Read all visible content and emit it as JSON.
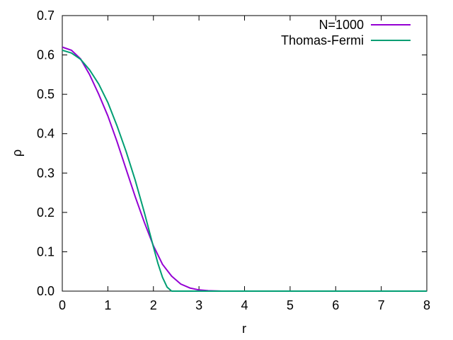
{
  "chart_data": {
    "type": "line",
    "title": "",
    "xlabel": "r",
    "ylabel": "ρ",
    "xlim": [
      0,
      8
    ],
    "ylim": [
      0,
      0.7
    ],
    "xticks": [
      "0",
      "1",
      "2",
      "3",
      "4",
      "5",
      "6",
      "7",
      "8"
    ],
    "yticks": [
      "0.0",
      "0.1",
      "0.2",
      "0.3",
      "0.4",
      "0.5",
      "0.6",
      "0.7"
    ],
    "grid": false,
    "legend_position": "top-right",
    "series": [
      {
        "name": "N=1000",
        "color": "#9400d3",
        "x": [
          0,
          0.2,
          0.4,
          0.6,
          0.8,
          1.0,
          1.2,
          1.4,
          1.6,
          1.8,
          2.0,
          2.2,
          2.4,
          2.6,
          2.8,
          3.0,
          3.2,
          3.5,
          4,
          5,
          6,
          7,
          8
        ],
        "y": [
          0.62,
          0.612,
          0.59,
          0.55,
          0.5,
          0.445,
          0.38,
          0.31,
          0.24,
          0.175,
          0.115,
          0.068,
          0.038,
          0.018,
          0.008,
          0.003,
          0.001,
          0.0,
          0.0,
          0.0,
          0.0,
          0.0,
          0.0
        ]
      },
      {
        "name": "Thomas-Fermi",
        "color": "#009e73",
        "x": [
          0,
          0.2,
          0.4,
          0.6,
          0.8,
          1.0,
          1.2,
          1.4,
          1.6,
          1.8,
          2.0,
          2.1,
          2.2,
          2.3,
          2.4,
          2.5,
          3,
          4,
          5,
          6,
          7,
          8
        ],
        "y": [
          0.612,
          0.605,
          0.589,
          0.562,
          0.526,
          0.479,
          0.42,
          0.355,
          0.282,
          0.2,
          0.112,
          0.07,
          0.035,
          0.01,
          0.0,
          0.0,
          0.0,
          0.0,
          0.0,
          0.0,
          0.0,
          0.0
        ]
      }
    ]
  }
}
